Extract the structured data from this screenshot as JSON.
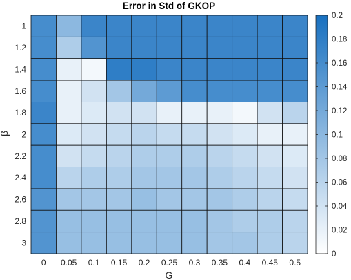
{
  "chart_data": {
    "type": "heatmap",
    "title": "Error in Std of GKOP",
    "xlabel": "G",
    "ylabel": "β",
    "x_categories": [
      "0",
      "0.05",
      "0.1",
      "0.15",
      "0.2",
      "0.25",
      "0.3",
      "0.35",
      "0.4",
      "0.45",
      "0.5"
    ],
    "y_categories": [
      "1",
      "1.2",
      "1.4",
      "1.6",
      "1.8",
      "2",
      "2.2",
      "2.4",
      "2.6",
      "2.8",
      "3"
    ],
    "values": [
      [
        0.16,
        0.1,
        0.17,
        0.17,
        0.17,
        0.17,
        0.17,
        0.17,
        0.17,
        0.17,
        0.17
      ],
      [
        0.16,
        0.07,
        0.15,
        0.17,
        0.17,
        0.17,
        0.17,
        0.17,
        0.17,
        0.17,
        0.17
      ],
      [
        0.16,
        0.02,
        0.01,
        0.18,
        0.18,
        0.17,
        0.17,
        0.17,
        0.17,
        0.17,
        0.17
      ],
      [
        0.16,
        0.02,
        0.04,
        0.08,
        0.12,
        0.14,
        0.16,
        0.16,
        0.16,
        0.16,
        0.16
      ],
      [
        0.17,
        0.02,
        0.03,
        0.04,
        0.04,
        0.02,
        0.02,
        0.02,
        0.01,
        0.04,
        0.06
      ],
      [
        0.16,
        0.03,
        0.04,
        0.05,
        0.06,
        0.05,
        0.05,
        0.04,
        0.03,
        0.02,
        0.02
      ],
      [
        0.16,
        0.04,
        0.05,
        0.06,
        0.07,
        0.07,
        0.07,
        0.06,
        0.05,
        0.04,
        0.03
      ],
      [
        0.16,
        0.06,
        0.07,
        0.07,
        0.08,
        0.08,
        0.08,
        0.07,
        0.06,
        0.05,
        0.04
      ],
      [
        0.15,
        0.08,
        0.08,
        0.08,
        0.09,
        0.08,
        0.08,
        0.08,
        0.07,
        0.06,
        0.05
      ],
      [
        0.15,
        0.09,
        0.09,
        0.09,
        0.09,
        0.09,
        0.09,
        0.08,
        0.07,
        0.07,
        0.06
      ],
      [
        0.15,
        0.09,
        0.09,
        0.09,
        0.09,
        0.09,
        0.09,
        0.08,
        0.08,
        0.07,
        0.06
      ]
    ],
    "colorbar": {
      "min": 0,
      "max": 0.2,
      "ticks": [
        "0",
        "0.02",
        "0.04",
        "0.06",
        "0.08",
        "0.1",
        "0.12",
        "0.14",
        "0.16",
        "0.18",
        "0.2"
      ],
      "colormap": [
        "#ffffff",
        "#1870c0"
      ]
    },
    "cell_border_color": "#111111",
    "grid": false,
    "legend": "colorbar-right"
  }
}
